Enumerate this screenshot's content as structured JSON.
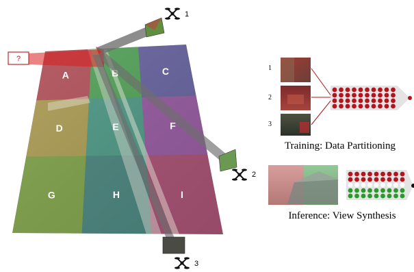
{
  "query": {
    "label": "?"
  },
  "cells": [
    {
      "label": "A",
      "color": "#e0304a"
    },
    {
      "label": "B",
      "color": "#38c04a"
    },
    {
      "label": "C",
      "color": "#5b4fc8"
    },
    {
      "label": "D",
      "color": "#d6b640"
    },
    {
      "label": "E",
      "color": "#2fb09a"
    },
    {
      "label": "F",
      "color": "#b040c8"
    },
    {
      "label": "G",
      "color": "#88c030"
    },
    {
      "label": "H",
      "color": "#2a8c8c"
    },
    {
      "label": "I",
      "color": "#d2307a"
    }
  ],
  "drones": [
    {
      "number": "1",
      "icon": "drone-icon"
    },
    {
      "number": "2",
      "icon": "drone-icon"
    },
    {
      "number": "3",
      "icon": "drone-icon"
    }
  ],
  "training": {
    "caption": "Training: Data Partitioning",
    "image_numbers": [
      "1",
      "2",
      "3"
    ]
  },
  "inference": {
    "caption": "Inference: View Synthesis"
  },
  "colors": {
    "model_red": "#b3141e",
    "model_green": "#2a9a2a",
    "ray": "#6e6e6e",
    "query_ray": "#d81e1e"
  }
}
